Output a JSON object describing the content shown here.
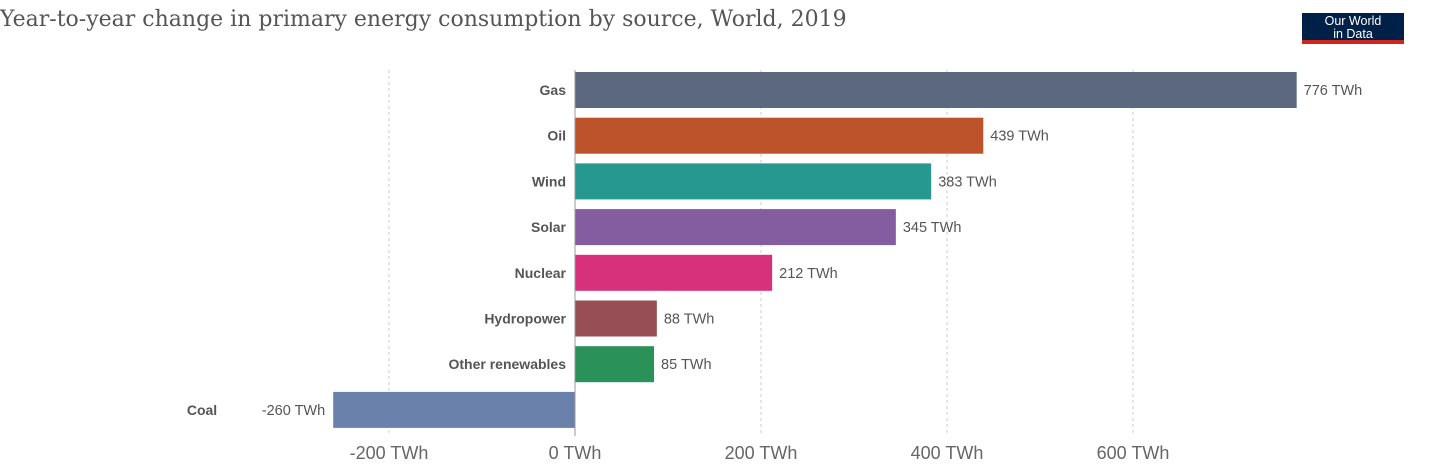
{
  "title": "Year-to-year change in primary energy consumption by source, World, 2019",
  "logo": {
    "line1": "Our World",
    "line2": "in Data"
  },
  "chart_data": {
    "type": "bar",
    "orientation": "horizontal",
    "title": "Year-to-year change in primary energy consumption by source, World, 2019",
    "unit": "TWh",
    "categories": [
      "Gas",
      "Oil",
      "Wind",
      "Solar",
      "Nuclear",
      "Hydropower",
      "Other renewables",
      "Coal"
    ],
    "values": [
      776,
      439,
      383,
      345,
      212,
      88,
      85,
      -260
    ],
    "data_labels": [
      "776 TWh",
      "439 TWh",
      "383 TWh",
      "345 TWh",
      "212 TWh",
      "88 TWh",
      "85 TWh",
      "-260 TWh"
    ],
    "colors": [
      "#5b687f",
      "#bd532b",
      "#27988f",
      "#845ca0",
      "#d7317c",
      "#974e54",
      "#2a9158",
      "#6981ab"
    ],
    "xlim": [
      -260,
      776
    ],
    "xticks": [
      -200,
      0,
      200,
      400,
      600
    ],
    "xtick_labels": [
      "-200 TWh",
      "0 TWh",
      "200 TWh",
      "400 TWh",
      "600 TWh"
    ],
    "grid": true
  }
}
